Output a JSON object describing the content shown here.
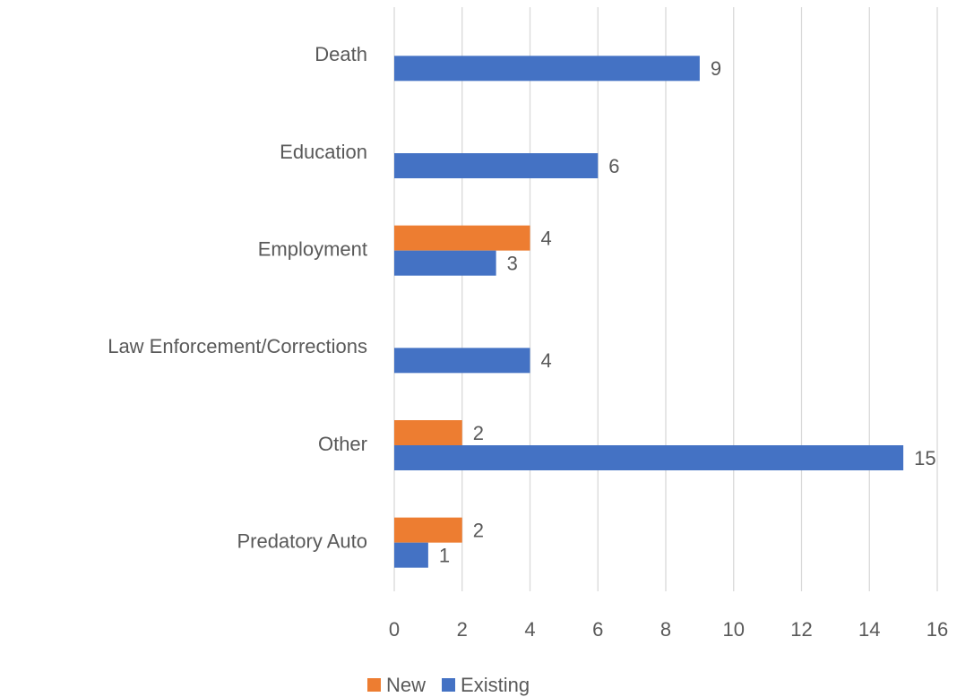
{
  "chart_data": {
    "type": "hbar",
    "categories": [
      "Death",
      "Education",
      "Employment",
      "Law Enforcement/Corrections",
      "Other",
      "Predatory Auto"
    ],
    "series": [
      {
        "name": "New",
        "color": "#ed7d31",
        "values": [
          null,
          null,
          4,
          null,
          2,
          2
        ]
      },
      {
        "name": "Existing",
        "color": "#4472c4",
        "values": [
          9,
          6,
          3,
          4,
          15,
          1
        ]
      }
    ],
    "xlim": [
      0,
      16
    ],
    "xticks": [
      0,
      2,
      4,
      6,
      8,
      10,
      12,
      14,
      16
    ],
    "grid": true,
    "legend": "bottom"
  }
}
